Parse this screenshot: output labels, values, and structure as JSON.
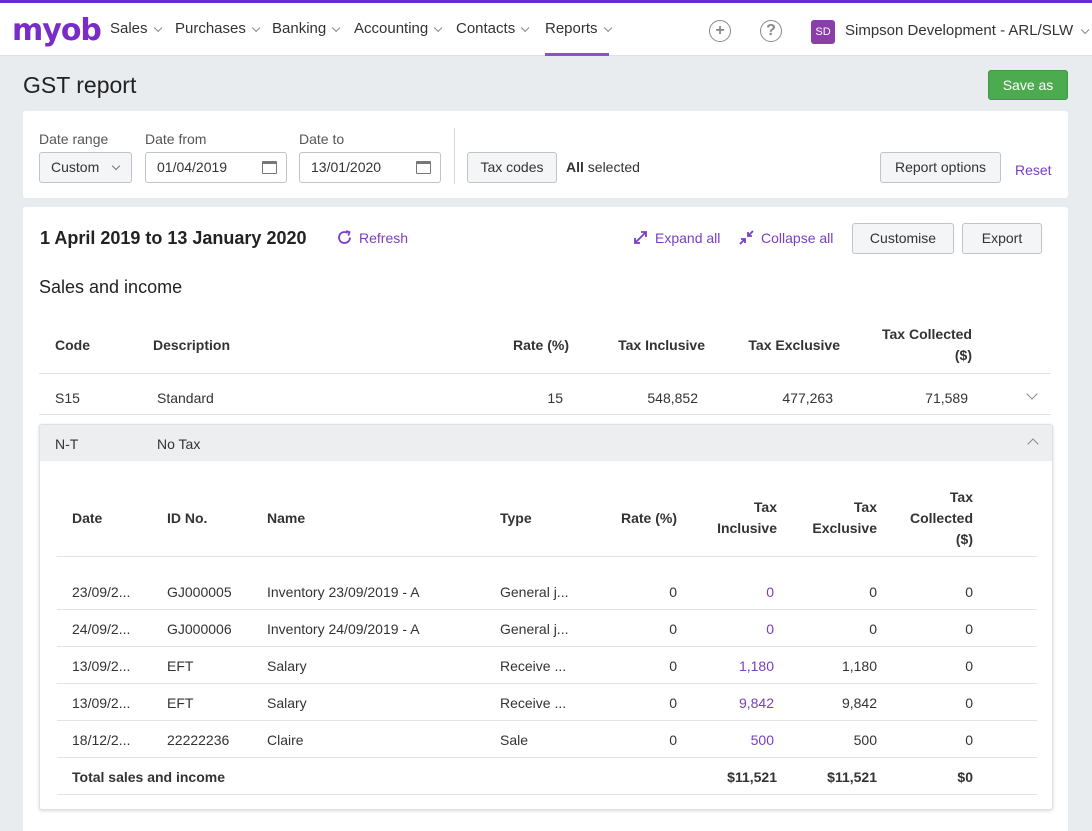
{
  "nav": {
    "logo": "myob",
    "items": [
      "Sales",
      "Purchases",
      "Banking",
      "Accounting",
      "Contacts",
      "Reports"
    ],
    "active": "Reports",
    "add_icon": "plus-icon",
    "help_icon": "help-icon",
    "avatar_initials": "SD",
    "business_name": "Simpson Development - ARL/SLW"
  },
  "page": {
    "title": "GST report",
    "save_as_label": "Save as"
  },
  "filters": {
    "date_range_label": "Date range",
    "date_range_value": "Custom",
    "date_from_label": "Date from",
    "date_from_value": "01/04/2019",
    "date_to_label": "Date to",
    "date_to_value": "13/01/2020",
    "tax_codes_label": "Tax codes",
    "tax_codes_selected_bold": "All",
    "tax_codes_selected_rest": " selected",
    "report_options_label": "Report options",
    "reset_label": "Reset"
  },
  "report": {
    "period": "1 April 2019 to 13 January 2020",
    "refresh_label": "Refresh",
    "expand_all_label": "Expand all",
    "collapse_all_label": "Collapse all",
    "customise_label": "Customise",
    "export_label": "Export",
    "section_title": "Sales and income",
    "columns": {
      "code": "Code",
      "description": "Description",
      "rate": "Rate (%)",
      "tax_inclusive": "Tax Inclusive",
      "tax_exclusive": "Tax Exclusive",
      "tax_collected_1": "Tax Collected",
      "tax_collected_2": "($)"
    },
    "codes": [
      {
        "code": "S15",
        "description": "Standard",
        "rate": "15",
        "tax_inclusive": "548,852",
        "tax_exclusive": "477,263",
        "tax_collected": "71,589"
      },
      {
        "code": "N-T",
        "description": "No Tax"
      }
    ],
    "detail_columns": {
      "date": "Date",
      "id_no": "ID No.",
      "name": "Name",
      "type": "Type",
      "rate": "Rate (%)",
      "tax_inclusive_1": "Tax",
      "tax_inclusive_2": "Inclusive",
      "tax_exclusive_1": "Tax",
      "tax_exclusive_2": "Exclusive",
      "tax_collected_1": "Tax",
      "tax_collected_2": "Collected",
      "tax_collected_3": "($)"
    },
    "detail_rows": [
      {
        "date": "23/09/2...",
        "id_no": "GJ000005",
        "name": "Inventory 23/09/2019 - A",
        "type": "General j...",
        "rate": "0",
        "tax_inclusive": "0",
        "tax_exclusive": "0",
        "tax_collected": "0"
      },
      {
        "date": "24/09/2...",
        "id_no": "GJ000006",
        "name": "Inventory 24/09/2019 - A",
        "type": "General j...",
        "rate": "0",
        "tax_inclusive": "0",
        "tax_exclusive": "0",
        "tax_collected": "0"
      },
      {
        "date": "13/09/2...",
        "id_no": "EFT",
        "name": "Salary",
        "type": "Receive ...",
        "rate": "0",
        "tax_inclusive": "1,180",
        "tax_exclusive": "1,180",
        "tax_collected": "0"
      },
      {
        "date": "13/09/2...",
        "id_no": "EFT",
        "name": "Salary",
        "type": "Receive ...",
        "rate": "0",
        "tax_inclusive": "9,842",
        "tax_exclusive": "9,842",
        "tax_collected": "0"
      },
      {
        "date": "18/12/2...",
        "id_no": "22222236",
        "name": "Claire",
        "type": "Sale",
        "rate": "0",
        "tax_inclusive": "500",
        "tax_exclusive": "500",
        "tax_collected": "0"
      }
    ],
    "total": {
      "label": "Total sales and income",
      "tax_inclusive": "$11,521",
      "tax_exclusive": "$11,521",
      "tax_collected": "$0"
    }
  },
  "colors": {
    "brand": "#7a2cc9",
    "accent_link": "#7a3ec6",
    "save_green": "#4caa4f"
  }
}
